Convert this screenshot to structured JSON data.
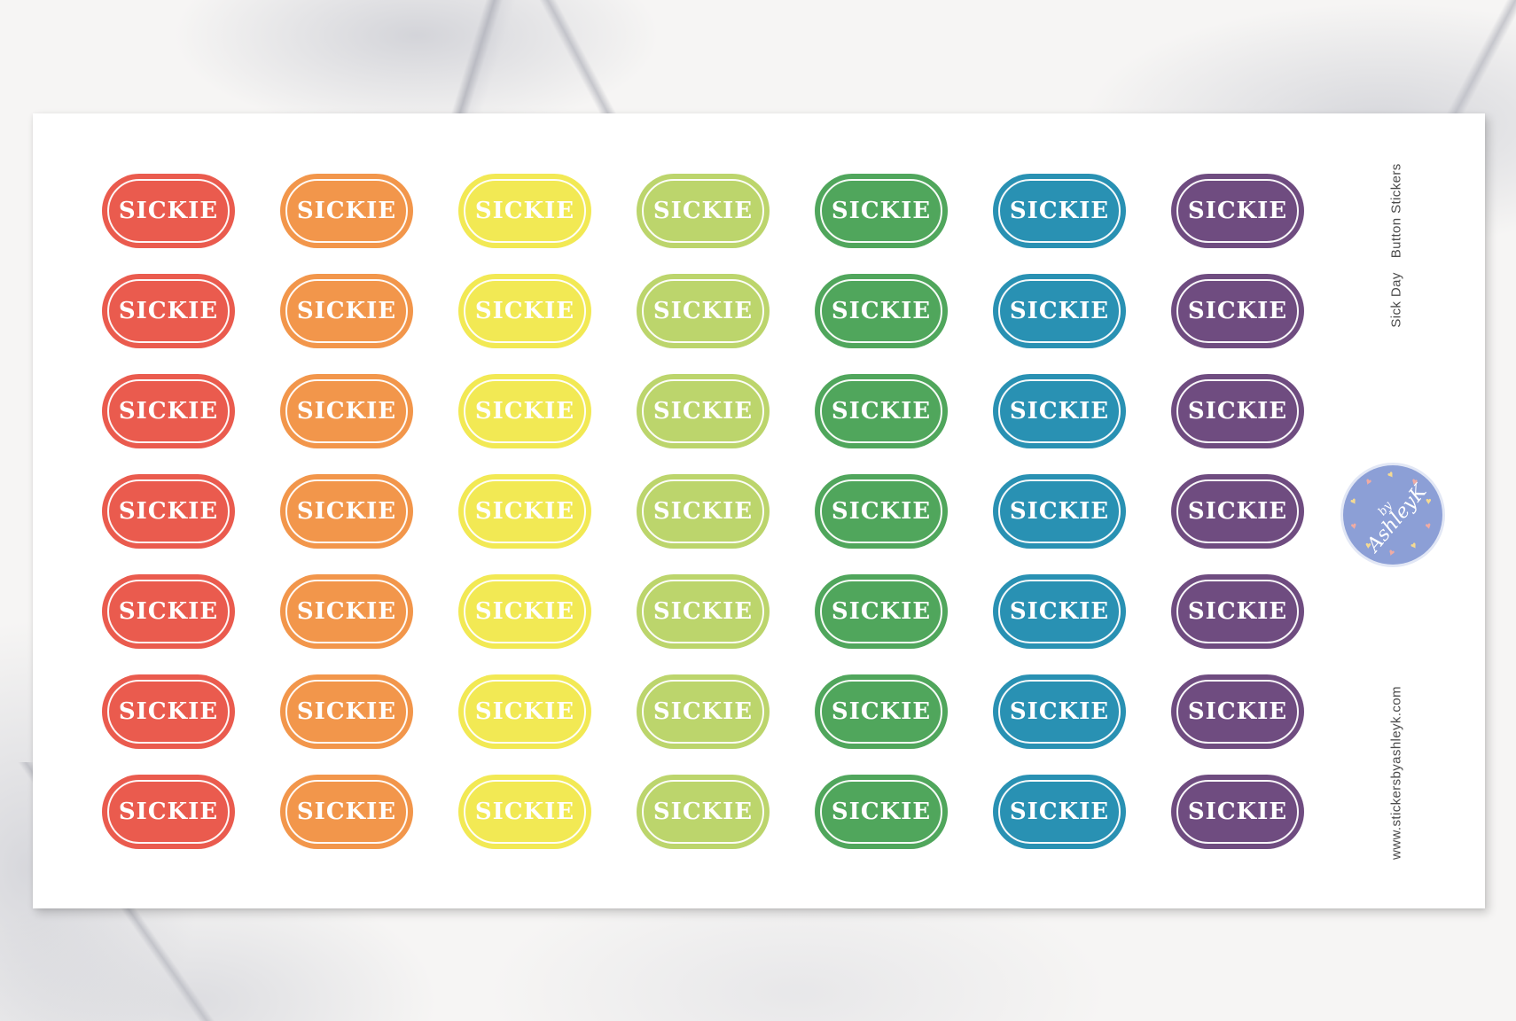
{
  "sheet": {
    "sticker_label": "SICKIE",
    "rows": 7,
    "columns": [
      {
        "name": "red",
        "color": "#EA5B4E"
      },
      {
        "name": "orange",
        "color": "#F2964B"
      },
      {
        "name": "yellow",
        "color": "#F2E954"
      },
      {
        "name": "lime",
        "color": "#BCD56C"
      },
      {
        "name": "green",
        "color": "#50A65C"
      },
      {
        "name": "teal",
        "color": "#2991B3"
      },
      {
        "name": "purple",
        "color": "#6F4C80"
      }
    ]
  },
  "side_text": {
    "product_line1": "Sick Day",
    "product_line2": "Button Stickers",
    "website": "www.stickersbyashleyk.com",
    "text_color": "#4a4a4a"
  },
  "logo": {
    "prefix": "by",
    "name": "AshleyK",
    "circle_color": "#8C9FD6",
    "heart_colors": [
      "#F3D going",
      "#F0ABA3"
    ],
    "hearts": {
      "count": 10,
      "colors": [
        "#F5DA92",
        "#F0ABA3"
      ]
    }
  }
}
